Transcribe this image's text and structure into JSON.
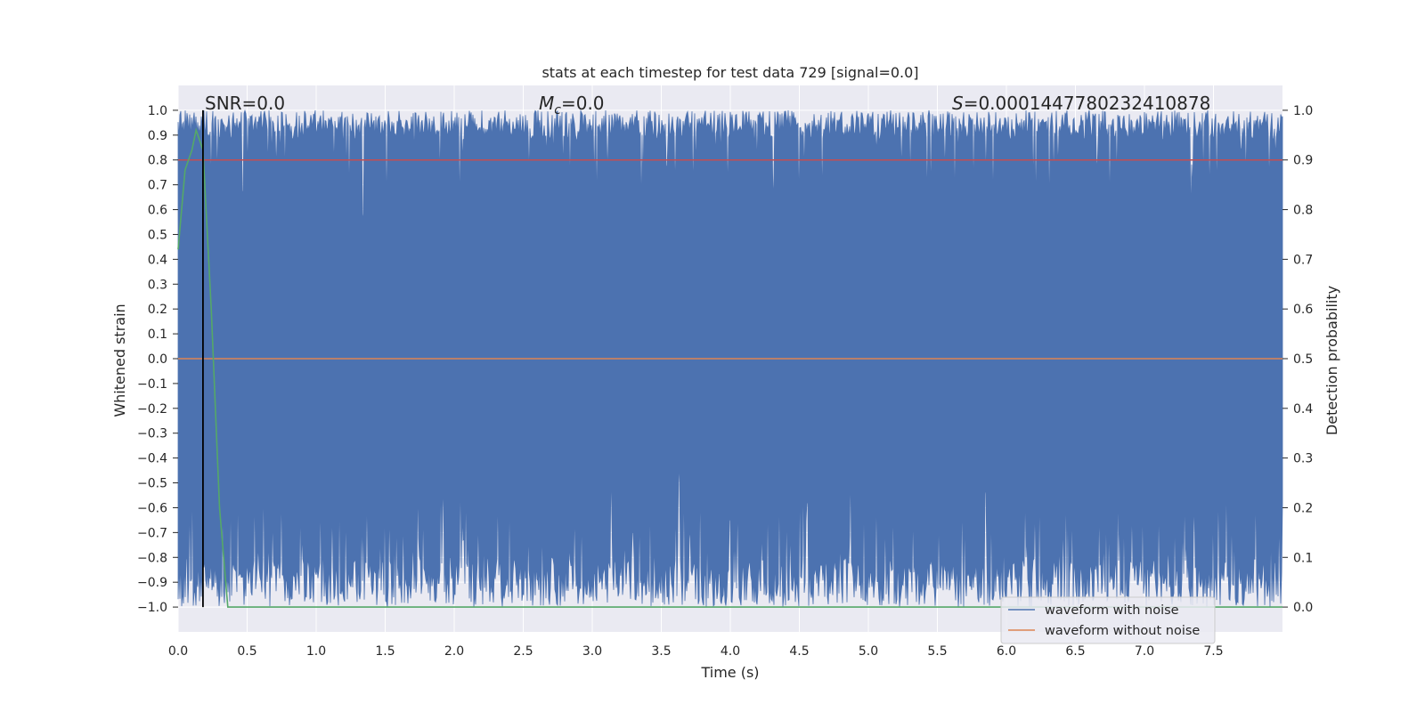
{
  "chart_data": {
    "type": "line",
    "title": "stats at each timestep for test data 729 [signal=0.0]",
    "xlabel": "Time (s)",
    "ylabel": "Whitened strain",
    "y2label": "Detection probability",
    "xlim": [
      0.0,
      8.0
    ],
    "ylim": [
      -1.1,
      1.1
    ],
    "y2lim": [
      -0.05,
      1.05
    ],
    "xticks": [
      "0.0",
      "0.5",
      "1.0",
      "1.5",
      "2.0",
      "2.5",
      "3.0",
      "3.5",
      "4.0",
      "4.5",
      "5.0",
      "5.5",
      "6.0",
      "6.5",
      "7.0",
      "7.5"
    ],
    "yticks": [
      "1.0",
      "0.9",
      "0.8",
      "0.7",
      "0.6",
      "0.5",
      "0.4",
      "0.3",
      "0.2",
      "0.1",
      "0.0",
      "−0.1",
      "−0.2",
      "−0.3",
      "−0.4",
      "−0.5",
      "−0.6",
      "−0.7",
      "−0.8",
      "−0.9",
      "−1.0"
    ],
    "y2ticks": [
      "1.0",
      "0.9",
      "0.8",
      "0.7",
      "0.6",
      "0.5",
      "0.4",
      "0.3",
      "0.2",
      "0.1",
      "0.0"
    ],
    "grid": true,
    "legend_position": "lower right",
    "annotations": {
      "snr": "SNR=0.0",
      "mc_symbol": "M",
      "mc_sub": "c",
      "mc_value": "=0.0",
      "s_symbol": "S",
      "s_value": "=0.0001447780232410878"
    },
    "series": [
      {
        "name": "waveform with noise",
        "color": "#4c72b0",
        "description_values": "dense noise spanning roughly -1.0 to 1.0 over 0–8 s",
        "envelope_upper_range": [
          0.55,
          1.0
        ],
        "envelope_lower_range": [
          -1.0,
          -0.4
        ]
      },
      {
        "name": "waveform without noise",
        "color": "#dd8452",
        "values_constant": 0.0
      },
      {
        "color": "#55a868",
        "axis": "right",
        "x": [
          0.0,
          0.05,
          0.1,
          0.13,
          0.18,
          0.24,
          0.3,
          0.36,
          0.4,
          8.0
        ],
        "y": [
          0.72,
          0.88,
          0.92,
          0.96,
          0.92,
          0.6,
          0.2,
          0.0,
          0.0,
          0.0
        ]
      },
      {
        "color": "#c44e52",
        "axis": "right",
        "values_constant": 0.9
      }
    ],
    "vlines": [
      {
        "x": 0.18,
        "color": "#000000",
        "ymin": -1.0,
        "ymax": 1.0
      }
    ]
  }
}
